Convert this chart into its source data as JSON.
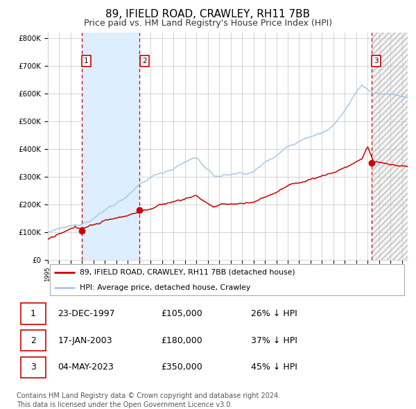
{
  "title": "89, IFIELD ROAD, CRAWLEY, RH11 7BB",
  "subtitle": "Price paid vs. HM Land Registry's House Price Index (HPI)",
  "title_fontsize": 11,
  "subtitle_fontsize": 9,
  "background_color": "#ffffff",
  "plot_bg_color": "#ffffff",
  "grid_color": "#cccccc",
  "ylim": [
    0,
    820000
  ],
  "yticks": [
    0,
    100000,
    200000,
    300000,
    400000,
    500000,
    600000,
    700000,
    800000
  ],
  "ytick_labels": [
    "£0",
    "£100K",
    "£200K",
    "£300K",
    "£400K",
    "£500K",
    "£600K",
    "£700K",
    "£800K"
  ],
  "xlim_start": 1995.0,
  "xlim_end": 2026.5,
  "xtick_years": [
    1995,
    1996,
    1997,
    1998,
    1999,
    2000,
    2001,
    2002,
    2003,
    2004,
    2005,
    2006,
    2007,
    2008,
    2009,
    2010,
    2011,
    2012,
    2013,
    2014,
    2015,
    2016,
    2017,
    2018,
    2019,
    2020,
    2021,
    2022,
    2023,
    2024,
    2025,
    2026
  ],
  "hpi_color": "#a8c8e8",
  "price_color": "#cc0000",
  "sale_dot_color": "#cc0000",
  "sale_dot_size": 7,
  "dashed_line_color": "#cc0000",
  "shade_color": "#ddeeff",
  "legend_label_red": "89, IFIELD ROAD, CRAWLEY, RH11 7BB (detached house)",
  "legend_label_blue": "HPI: Average price, detached house, Crawley",
  "sale1_x": 1997.97,
  "sale1_y": 105000,
  "sale1_label": "1",
  "sale1_date": "23-DEC-1997",
  "sale1_price": "£105,000",
  "sale1_hpi": "26% ↓ HPI",
  "sale2_x": 2003.04,
  "sale2_y": 180000,
  "sale2_label": "2",
  "sale2_date": "17-JAN-2003",
  "sale2_price": "£180,000",
  "sale2_hpi": "37% ↓ HPI",
  "sale3_x": 2023.34,
  "sale3_y": 350000,
  "sale3_label": "3",
  "sale3_date": "04-MAY-2023",
  "sale3_price": "£350,000",
  "sale3_hpi": "45% ↓ HPI",
  "footer_text": "Contains HM Land Registry data © Crown copyright and database right 2024.\nThis data is licensed under the Open Government Licence v3.0.",
  "footer_fontsize": 7
}
